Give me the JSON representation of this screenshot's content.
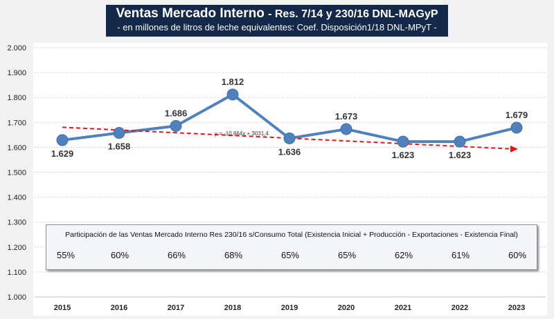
{
  "chart_data": {
    "type": "line",
    "title": "Ventas Mercado Interno",
    "title_suffix": "- Res. 7/14 y 230/16 DNL-MAGyP",
    "subtitle": "- en millones de litros de leche equivalentes: Coef. Disposición1/18 DNL-MPyT -",
    "categories": [
      "2015",
      "2016",
      "2017",
      "2018",
      "2019",
      "2020",
      "2021",
      "2022",
      "2023"
    ],
    "series": [
      {
        "name": "Ventas Mercado Interno",
        "values": [
          1629,
          1658,
          1686,
          1812,
          1636,
          1673,
          1623,
          1623,
          1679
        ],
        "labels": [
          "1.629",
          "1.658",
          "1.686",
          "1.812",
          "1.636",
          "1.673",
          "1.623",
          "1.623",
          "1.679"
        ],
        "color": "#4f81bd"
      }
    ],
    "trendline": {
      "equation": "y = -10,864x + 3031,4",
      "slope": -10.864,
      "intercept": 3031.4,
      "color": "#e8141b",
      "unit_note": "thousands"
    },
    "ylim": [
      1000,
      2000
    ],
    "yticks": [
      "1.000",
      "1.100",
      "1.200",
      "1.300",
      "1.400",
      "1.500",
      "1.600",
      "1.700",
      "1.800",
      "1.900",
      "2.000"
    ],
    "grid": true,
    "table": {
      "header": "Participación de las Ventas Mercado Interno Res 230/16 s/Consumo Total (Existencia Inicial + Producción - Exportaciones - Existencia Final)",
      "values": [
        "55%",
        "60%",
        "66%",
        "68%",
        "65%",
        "65%",
        "62%",
        "61%",
        "60%"
      ]
    }
  }
}
